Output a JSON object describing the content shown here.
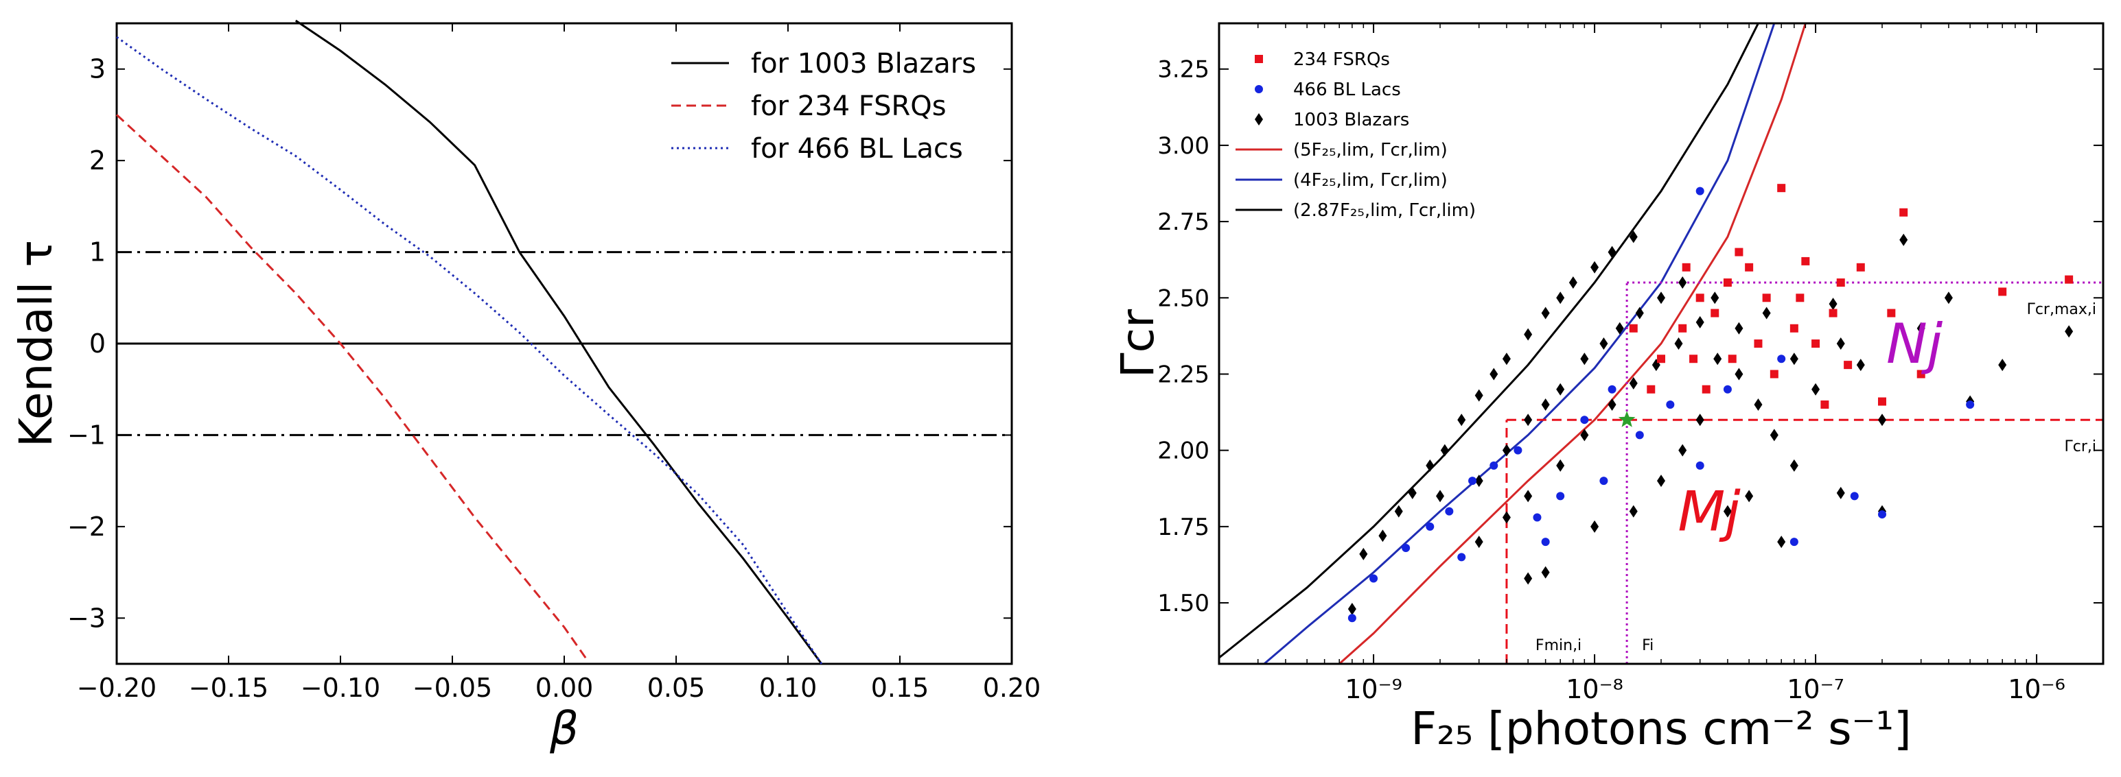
{
  "chart_data": [
    {
      "type": "line",
      "title": "",
      "xlabel": "β",
      "ylabel": "Kendall τ",
      "xlim": [
        -0.2,
        0.2
      ],
      "ylim": [
        -3.5,
        3.5
      ],
      "x_ticks": [
        -0.2,
        -0.15,
        -0.1,
        -0.05,
        0.0,
        0.05,
        0.1,
        0.15,
        0.2
      ],
      "x_tick_labels": [
        "−0.20",
        "−0.15",
        "−0.10",
        "−0.05",
        "0.00",
        "0.05",
        "0.10",
        "0.15",
        "0.20"
      ],
      "y_ticks": [
        -3,
        -2,
        -1,
        0,
        1,
        2,
        3
      ],
      "y_tick_labels": [
        "−3",
        "−2",
        "−1",
        "0",
        "1",
        "2",
        "3"
      ],
      "reference_lines": [
        {
          "y": 1,
          "style": "dash-dot",
          "color": "#000000"
        },
        {
          "y": 0,
          "style": "solid",
          "color": "#000000"
        },
        {
          "y": -1,
          "style": "dash-dot",
          "color": "#000000"
        }
      ],
      "legend_position": "top-right",
      "series": [
        {
          "name": "for 1003 Blazars",
          "color": "#000000",
          "style": "solid",
          "x": [
            -0.12,
            -0.1,
            -0.08,
            -0.06,
            -0.04,
            -0.02,
            0.0,
            0.02,
            0.04,
            0.06,
            0.08,
            0.1,
            0.115
          ],
          "y": [
            3.53,
            3.2,
            2.83,
            2.42,
            1.95,
            1.0,
            0.3,
            -0.48,
            -1.1,
            -1.75,
            -2.35,
            -3.0,
            -3.5
          ]
        },
        {
          "name": "for 234 FSRQs",
          "color": "#d62728",
          "style": "dashed",
          "x": [
            -0.2,
            -0.18,
            -0.16,
            -0.14,
            -0.12,
            -0.1,
            -0.08,
            -0.06,
            -0.04,
            -0.02,
            0.0,
            0.01
          ],
          "y": [
            2.5,
            2.05,
            1.6,
            1.05,
            0.55,
            0.0,
            -0.6,
            -1.25,
            -1.9,
            -2.5,
            -3.1,
            -3.45
          ]
        },
        {
          "name": "for 466 BL Lacs",
          "color": "#1f2db4",
          "style": "dotted",
          "x": [
            -0.2,
            -0.18,
            -0.16,
            -0.14,
            -0.12,
            -0.1,
            -0.08,
            -0.06,
            -0.04,
            -0.02,
            0.0,
            0.02,
            0.04,
            0.06,
            0.08,
            0.1,
            0.115
          ],
          "y": [
            3.35,
            3.0,
            2.67,
            2.35,
            2.05,
            1.68,
            1.3,
            0.95,
            0.55,
            0.12,
            -0.35,
            -0.78,
            -1.2,
            -1.65,
            -2.2,
            -2.95,
            -3.5
          ]
        }
      ]
    },
    {
      "type": "scatter",
      "title": "",
      "xlabel": "F₂₅ [photons cm⁻² s⁻¹]",
      "ylabel": "Γcr",
      "x_scale": "log",
      "xlim": [
        2e-10,
        2e-06
      ],
      "ylim": [
        1.3,
        3.4
      ],
      "x_ticks": [
        1e-09,
        1e-08,
        1e-07,
        1e-06
      ],
      "x_tick_labels": [
        "10⁻⁹",
        "10⁻⁸",
        "10⁻⁷",
        "10⁻⁶"
      ],
      "y_ticks": [
        1.5,
        1.75,
        2.0,
        2.25,
        2.5,
        2.75,
        3.0,
        3.25
      ],
      "y_tick_labels": [
        "1.50",
        "1.75",
        "2.00",
        "2.25",
        "2.50",
        "2.75",
        "3.00",
        "3.25"
      ],
      "legend_position": "top-left",
      "legend": [
        {
          "label": "234 FSRQs",
          "marker": "square",
          "color": "#e8101c"
        },
        {
          "label": "466 BL Lacs",
          "marker": "circle",
          "color": "#1424e0"
        },
        {
          "label": "1003 Blazars",
          "marker": "diamond",
          "color": "#000000"
        },
        {
          "label": "(5F₂₅,lim, Γcr,lim)",
          "marker": "line",
          "color": "#d62728"
        },
        {
          "label": "(4F₂₅,lim, Γcr,lim)",
          "marker": "line",
          "color": "#1f2db4"
        },
        {
          "label": "(2.87F₂₅,lim, Γcr,lim)",
          "marker": "line",
          "color": "#000000"
        }
      ],
      "limit_curves": [
        {
          "name": "(5F₂₅,lim, Γcr,lim)",
          "color": "#d62728",
          "x": [
            7e-10,
            1e-09,
            2e-09,
            5e-09,
            1e-08,
            2e-08,
            4e-08,
            7e-08,
            9e-08
          ],
          "y": [
            1.3,
            1.4,
            1.62,
            1.9,
            2.1,
            2.35,
            2.7,
            3.15,
            3.4
          ]
        },
        {
          "name": "(4F₂₅,lim, Γcr,lim)",
          "color": "#1f2db4",
          "x": [
            3.2e-10,
            5e-10,
            1e-09,
            2e-09,
            5e-09,
            1e-08,
            2e-08,
            4e-08,
            6.5e-08
          ],
          "y": [
            1.3,
            1.42,
            1.6,
            1.8,
            2.05,
            2.27,
            2.55,
            2.95,
            3.4
          ]
        },
        {
          "name": "(2.87F₂₅,lim, Γcr,lim)",
          "color": "#000000",
          "x": [
            2e-10,
            5e-10,
            1e-09,
            2e-09,
            5e-09,
            1e-08,
            2e-08,
            4e-08,
            5.5e-08
          ],
          "y": [
            1.32,
            1.55,
            1.75,
            1.97,
            2.28,
            2.55,
            2.85,
            3.2,
            3.4
          ]
        }
      ],
      "points": [
        {
          "x": 8e-10,
          "y": 1.48,
          "cls": "blazar"
        },
        {
          "x": 9e-10,
          "y": 1.66,
          "cls": "blazar"
        },
        {
          "x": 1.1e-09,
          "y": 1.72,
          "cls": "blazar"
        },
        {
          "x": 1.3e-09,
          "y": 1.8,
          "cls": "blazar"
        },
        {
          "x": 1.5e-09,
          "y": 1.86,
          "cls": "blazar"
        },
        {
          "x": 1.8e-09,
          "y": 1.95,
          "cls": "blazar"
        },
        {
          "x": 2.1e-09,
          "y": 2.0,
          "cls": "blazar"
        },
        {
          "x": 2.5e-09,
          "y": 2.1,
          "cls": "blazar"
        },
        {
          "x": 3e-09,
          "y": 2.18,
          "cls": "blazar"
        },
        {
          "x": 3.5e-09,
          "y": 2.25,
          "cls": "blazar"
        },
        {
          "x": 4e-09,
          "y": 2.3,
          "cls": "blazar"
        },
        {
          "x": 5e-09,
          "y": 2.38,
          "cls": "blazar"
        },
        {
          "x": 6e-09,
          "y": 2.45,
          "cls": "blazar"
        },
        {
          "x": 7e-09,
          "y": 2.5,
          "cls": "blazar"
        },
        {
          "x": 8e-09,
          "y": 2.55,
          "cls": "blazar"
        },
        {
          "x": 1e-08,
          "y": 2.6,
          "cls": "blazar"
        },
        {
          "x": 1.2e-08,
          "y": 2.65,
          "cls": "blazar"
        },
        {
          "x": 1.5e-08,
          "y": 2.7,
          "cls": "blazar"
        },
        {
          "x": 2e-09,
          "y": 1.85,
          "cls": "blazar"
        },
        {
          "x": 3e-09,
          "y": 1.9,
          "cls": "blazar"
        },
        {
          "x": 4e-09,
          "y": 2.0,
          "cls": "blazar"
        },
        {
          "x": 5e-09,
          "y": 2.1,
          "cls": "blazar"
        },
        {
          "x": 6e-09,
          "y": 2.15,
          "cls": "blazar"
        },
        {
          "x": 7e-09,
          "y": 2.2,
          "cls": "blazar"
        },
        {
          "x": 9e-09,
          "y": 2.3,
          "cls": "blazar"
        },
        {
          "x": 1.1e-08,
          "y": 2.35,
          "cls": "blazar"
        },
        {
          "x": 1.3e-08,
          "y": 2.4,
          "cls": "blazar"
        },
        {
          "x": 1.6e-08,
          "y": 2.45,
          "cls": "blazar"
        },
        {
          "x": 2e-08,
          "y": 2.5,
          "cls": "blazar"
        },
        {
          "x": 2.5e-08,
          "y": 2.55,
          "cls": "blazar"
        },
        {
          "x": 3e-09,
          "y": 1.7,
          "cls": "blazar"
        },
        {
          "x": 4e-09,
          "y": 1.78,
          "cls": "blazar"
        },
        {
          "x": 5e-09,
          "y": 1.85,
          "cls": "blazar"
        },
        {
          "x": 7e-09,
          "y": 1.95,
          "cls": "blazar"
        },
        {
          "x": 9e-09,
          "y": 2.05,
          "cls": "blazar"
        },
        {
          "x": 1.2e-08,
          "y": 2.15,
          "cls": "blazar"
        },
        {
          "x": 1.5e-08,
          "y": 2.22,
          "cls": "blazar"
        },
        {
          "x": 1.9e-08,
          "y": 2.28,
          "cls": "blazar"
        },
        {
          "x": 2.4e-08,
          "y": 2.35,
          "cls": "blazar"
        },
        {
          "x": 3e-08,
          "y": 2.42,
          "cls": "blazar"
        },
        {
          "x": 3.6e-08,
          "y": 2.3,
          "cls": "blazar"
        },
        {
          "x": 4.5e-08,
          "y": 2.25,
          "cls": "blazar"
        },
        {
          "x": 5.5e-08,
          "y": 2.15,
          "cls": "blazar"
        },
        {
          "x": 6.5e-08,
          "y": 2.05,
          "cls": "blazar"
        },
        {
          "x": 8e-08,
          "y": 1.95,
          "cls": "blazar"
        },
        {
          "x": 1e-07,
          "y": 2.2,
          "cls": "blazar"
        },
        {
          "x": 1.3e-07,
          "y": 2.35,
          "cls": "blazar"
        },
        {
          "x": 1.6e-07,
          "y": 2.28,
          "cls": "blazar"
        },
        {
          "x": 2e-07,
          "y": 2.1,
          "cls": "blazar"
        },
        {
          "x": 2.5e-07,
          "y": 2.69,
          "cls": "blazar"
        },
        {
          "x": 3e-07,
          "y": 2.4,
          "cls": "blazar"
        },
        {
          "x": 4e-07,
          "y": 2.5,
          "cls": "blazar"
        },
        {
          "x": 5e-07,
          "y": 2.16,
          "cls": "blazar"
        },
        {
          "x": 7e-07,
          "y": 2.28,
          "cls": "blazar"
        },
        {
          "x": 1.4e-06,
          "y": 2.39,
          "cls": "blazar"
        },
        {
          "x": 2e-08,
          "y": 1.9,
          "cls": "blazar"
        },
        {
          "x": 2.5e-08,
          "y": 2.0,
          "cls": "blazar"
        },
        {
          "x": 3e-08,
          "y": 2.1,
          "cls": "blazar"
        },
        {
          "x": 4e-08,
          "y": 1.8,
          "cls": "blazar"
        },
        {
          "x": 5e-08,
          "y": 1.85,
          "cls": "blazar"
        },
        {
          "x": 7e-08,
          "y": 1.7,
          "cls": "blazar"
        },
        {
          "x": 1.3e-07,
          "y": 1.86,
          "cls": "blazar"
        },
        {
          "x": 2e-07,
          "y": 1.8,
          "cls": "blazar"
        },
        {
          "x": 1.5e-08,
          "y": 1.8,
          "cls": "blazar"
        },
        {
          "x": 1e-08,
          "y": 1.75,
          "cls": "blazar"
        },
        {
          "x": 6e-09,
          "y": 1.6,
          "cls": "blazar"
        },
        {
          "x": 5e-09,
          "y": 1.58,
          "cls": "blazar"
        },
        {
          "x": 3.5e-08,
          "y": 2.5,
          "cls": "blazar"
        },
        {
          "x": 4.5e-08,
          "y": 2.4,
          "cls": "blazar"
        },
        {
          "x": 6e-08,
          "y": 2.45,
          "cls": "blazar"
        },
        {
          "x": 8e-08,
          "y": 2.3,
          "cls": "blazar"
        },
        {
          "x": 1.2e-07,
          "y": 2.48,
          "cls": "blazar"
        },
        {
          "x": 8e-10,
          "y": 1.45,
          "cls": "bllac"
        },
        {
          "x": 1e-09,
          "y": 1.58,
          "cls": "bllac"
        },
        {
          "x": 1.4e-09,
          "y": 1.68,
          "cls": "bllac"
        },
        {
          "x": 1.8e-09,
          "y": 1.75,
          "cls": "bllac"
        },
        {
          "x": 2.2e-09,
          "y": 1.8,
          "cls": "bllac"
        },
        {
          "x": 2.8e-09,
          "y": 1.9,
          "cls": "bllac"
        },
        {
          "x": 3.5e-09,
          "y": 1.95,
          "cls": "bllac"
        },
        {
          "x": 4.5e-09,
          "y": 2.0,
          "cls": "bllac"
        },
        {
          "x": 5.5e-09,
          "y": 1.78,
          "cls": "bllac"
        },
        {
          "x": 7e-09,
          "y": 1.85,
          "cls": "bllac"
        },
        {
          "x": 9e-09,
          "y": 2.1,
          "cls": "bllac"
        },
        {
          "x": 1.2e-08,
          "y": 2.2,
          "cls": "bllac"
        },
        {
          "x": 1.6e-08,
          "y": 2.05,
          "cls": "bllac"
        },
        {
          "x": 2.2e-08,
          "y": 2.15,
          "cls": "bllac"
        },
        {
          "x": 3e-08,
          "y": 1.95,
          "cls": "bllac"
        },
        {
          "x": 4e-08,
          "y": 2.2,
          "cls": "bllac"
        },
        {
          "x": 7e-08,
          "y": 2.3,
          "cls": "bllac"
        },
        {
          "x": 1.5e-07,
          "y": 1.85,
          "cls": "bllac"
        },
        {
          "x": 2e-07,
          "y": 1.79,
          "cls": "bllac"
        },
        {
          "x": 5e-07,
          "y": 2.15,
          "cls": "bllac"
        },
        {
          "x": 3e-08,
          "y": 2.85,
          "cls": "bllac"
        },
        {
          "x": 2.5e-09,
          "y": 1.65,
          "cls": "bllac"
        },
        {
          "x": 6e-09,
          "y": 1.7,
          "cls": "bllac"
        },
        {
          "x": 1.1e-08,
          "y": 1.9,
          "cls": "bllac"
        },
        {
          "x": 8e-08,
          "y": 1.7,
          "cls": "bllac"
        },
        {
          "x": 2e-08,
          "y": 2.3,
          "cls": "fsrq"
        },
        {
          "x": 2.5e-08,
          "y": 2.4,
          "cls": "fsrq"
        },
        {
          "x": 3e-08,
          "y": 2.5,
          "cls": "fsrq"
        },
        {
          "x": 3.5e-08,
          "y": 2.45,
          "cls": "fsrq"
        },
        {
          "x": 4e-08,
          "y": 2.55,
          "cls": "fsrq"
        },
        {
          "x": 4.5e-08,
          "y": 2.65,
          "cls": "fsrq"
        },
        {
          "x": 5e-08,
          "y": 2.6,
          "cls": "fsrq"
        },
        {
          "x": 5.5e-08,
          "y": 2.35,
          "cls": "fsrq"
        },
        {
          "x": 6e-08,
          "y": 2.5,
          "cls": "fsrq"
        },
        {
          "x": 7e-08,
          "y": 2.86,
          "cls": "fsrq"
        },
        {
          "x": 8e-08,
          "y": 2.4,
          "cls": "fsrq"
        },
        {
          "x": 9e-08,
          "y": 2.62,
          "cls": "fsrq"
        },
        {
          "x": 1e-07,
          "y": 2.35,
          "cls": "fsrq"
        },
        {
          "x": 1.2e-07,
          "y": 2.45,
          "cls": "fsrq"
        },
        {
          "x": 1.4e-07,
          "y": 2.28,
          "cls": "fsrq"
        },
        {
          "x": 1.6e-07,
          "y": 2.6,
          "cls": "fsrq"
        },
        {
          "x": 2e-07,
          "y": 2.16,
          "cls": "fsrq"
        },
        {
          "x": 2.5e-07,
          "y": 2.78,
          "cls": "fsrq"
        },
        {
          "x": 2.2e-07,
          "y": 2.45,
          "cls": "fsrq"
        },
        {
          "x": 3e-07,
          "y": 2.25,
          "cls": "fsrq"
        },
        {
          "x": 7e-07,
          "y": 2.52,
          "cls": "fsrq"
        },
        {
          "x": 1.4e-06,
          "y": 2.56,
          "cls": "fsrq"
        },
        {
          "x": 1.8e-08,
          "y": 2.2,
          "cls": "fsrq"
        },
        {
          "x": 2.8e-08,
          "y": 2.3,
          "cls": "fsrq"
        },
        {
          "x": 3.2e-08,
          "y": 2.2,
          "cls": "fsrq"
        },
        {
          "x": 4.2e-08,
          "y": 2.3,
          "cls": "fsrq"
        },
        {
          "x": 6.5e-08,
          "y": 2.25,
          "cls": "fsrq"
        },
        {
          "x": 1.3e-07,
          "y": 2.55,
          "cls": "fsrq"
        },
        {
          "x": 1.1e-07,
          "y": 2.15,
          "cls": "fsrq"
        },
        {
          "x": 2.6e-08,
          "y": 2.6,
          "cls": "fsrq"
        },
        {
          "x": 1.5e-08,
          "y": 2.4,
          "cls": "fsrq"
        },
        {
          "x": 8.5e-08,
          "y": 2.5,
          "cls": "fsrq"
        }
      ],
      "highlight_point": {
        "x": 1.4e-08,
        "y": 2.1,
        "color": "#2ca02c",
        "marker": "star"
      },
      "reference_lines": [
        {
          "orientation": "horizontal",
          "y": 2.1,
          "x_from": 4e-09,
          "style": "dashed",
          "color": "#e8101c",
          "label": "Γcr,i"
        },
        {
          "orientation": "vertical",
          "x": 4e-09,
          "y_to": 2.1,
          "style": "dashed",
          "color": "#e8101c",
          "label": "Fmin,i"
        },
        {
          "orientation": "horizontal",
          "y": 2.55,
          "x_from": 1.4e-08,
          "style": "dotted",
          "color": "#b010c0",
          "label": "Γcr,max,i"
        },
        {
          "orientation": "vertical",
          "x": 1.4e-08,
          "y_to": 2.55,
          "style": "dotted",
          "color": "#b010c0",
          "label": "Fi"
        }
      ],
      "region_labels": [
        {
          "text": "Nj",
          "x": 2.8e-07,
          "y": 2.35,
          "color": "#b010c0"
        },
        {
          "text": "Mj",
          "x": 3.3e-08,
          "y": 1.8,
          "color": "#e8101c"
        }
      ]
    }
  ]
}
